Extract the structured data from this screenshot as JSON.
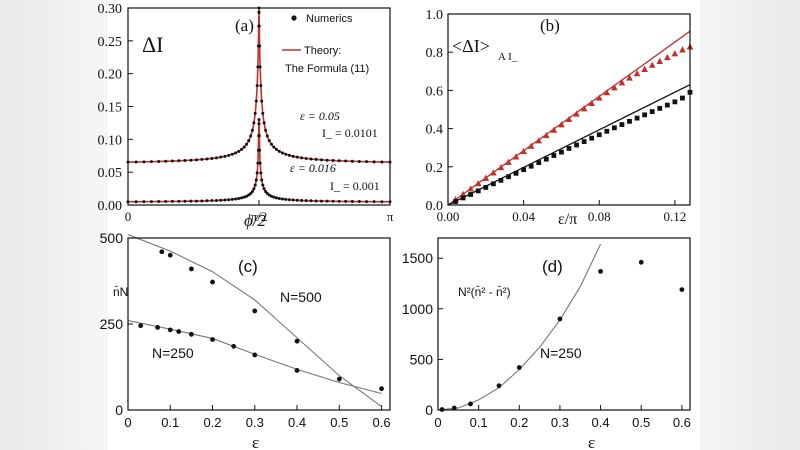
{
  "chart_data": [
    {
      "id": "a",
      "type": "line",
      "panel_label": "(a)",
      "ylabel": "ΔI",
      "xlabel": "ϕ/2",
      "xlim": [
        0,
        3.14159
      ],
      "ylim": [
        0,
        0.3
      ],
      "xticks": [
        {
          "v": 0,
          "label": "0"
        },
        {
          "v": 1.5708,
          "label": "π/2"
        },
        {
          "v": 3.14159,
          "label": "π"
        }
      ],
      "yticks": [
        0.0,
        0.05,
        0.1,
        0.15,
        0.2,
        0.25,
        0.3
      ],
      "ytick_labels": [
        "0.00",
        "0.05",
        "0.10",
        "0.15",
        "0.20",
        "0.25",
        "0.30"
      ],
      "legend": {
        "numerics": "Numerics",
        "theory_line1": "Theory:",
        "theory_line2": "The Formula (11)"
      },
      "annotations": [
        {
          "text": "ε = 0.05",
          "series": 0
        },
        {
          "text": "I_ = 0.0101",
          "series": 0
        },
        {
          "text": "ε = 0.016",
          "series": 1
        },
        {
          "text": "I_ = 0.001",
          "series": 1
        }
      ],
      "series": [
        {
          "name": "ε=0.05, I_=0.0101",
          "base": 0.062,
          "peak": 0.3
        },
        {
          "name": "ε=0.016, I_=0.001",
          "base": 0.004,
          "peak": 0.13
        }
      ]
    },
    {
      "id": "b",
      "type": "scatter",
      "panel_label": "(b)",
      "ylabel": "<ΔI>",
      "ylabel_sub": "A I_",
      "xlabel": "ε/π",
      "xlim": [
        0,
        0.128
      ],
      "ylim": [
        0,
        1.0
      ],
      "xticks": [
        0.0,
        0.04,
        0.08,
        0.12
      ],
      "xtick_labels": [
        "0.00",
        "0.04",
        "0.08",
        "0.12"
      ],
      "yticks": [
        0.0,
        0.2,
        0.4,
        0.6,
        0.8,
        1.0
      ],
      "ytick_labels": [
        "0.0",
        "0.2",
        "0.4",
        "0.6",
        "0.8",
        "1.0"
      ],
      "series": [
        {
          "name": "red triangles",
          "color": "#c0302c",
          "marker": "triangle",
          "x": [
            0.004,
            0.008,
            0.012,
            0.016,
            0.02,
            0.024,
            0.028,
            0.032,
            0.036,
            0.04,
            0.044,
            0.048,
            0.052,
            0.056,
            0.06,
            0.064,
            0.068,
            0.072,
            0.076,
            0.08,
            0.084,
            0.088,
            0.092,
            0.096,
            0.1,
            0.104,
            0.108,
            0.112,
            0.116,
            0.12,
            0.124,
            0.128
          ],
          "y": [
            0.028,
            0.056,
            0.084,
            0.112,
            0.14,
            0.168,
            0.196,
            0.224,
            0.252,
            0.28,
            0.308,
            0.336,
            0.364,
            0.392,
            0.42,
            0.448,
            0.476,
            0.504,
            0.532,
            0.56,
            0.588,
            0.614,
            0.64,
            0.665,
            0.688,
            0.71,
            0.732,
            0.752,
            0.772,
            0.792,
            0.812,
            0.828
          ],
          "fit": [
            [
              0.0,
              0.0
            ],
            [
              0.128,
              0.91
            ]
          ]
        },
        {
          "name": "black squares",
          "color": "#111111",
          "marker": "square",
          "x": [
            0.004,
            0.008,
            0.012,
            0.016,
            0.02,
            0.024,
            0.028,
            0.032,
            0.036,
            0.04,
            0.044,
            0.048,
            0.052,
            0.056,
            0.06,
            0.064,
            0.068,
            0.072,
            0.076,
            0.08,
            0.084,
            0.088,
            0.092,
            0.096,
            0.1,
            0.104,
            0.108,
            0.112,
            0.116,
            0.12,
            0.124,
            0.128
          ],
          "y": [
            0.018,
            0.037,
            0.055,
            0.074,
            0.092,
            0.111,
            0.129,
            0.148,
            0.166,
            0.185,
            0.203,
            0.222,
            0.24,
            0.259,
            0.277,
            0.296,
            0.314,
            0.332,
            0.35,
            0.368,
            0.386,
            0.404,
            0.421,
            0.438,
            0.455,
            0.472,
            0.489,
            0.506,
            0.523,
            0.54,
            0.56,
            0.59
          ],
          "fit": [
            [
              0.0,
              0.0
            ],
            [
              0.128,
              0.63
            ]
          ]
        }
      ]
    },
    {
      "id": "c",
      "type": "scatter",
      "panel_label": "(c)",
      "ylabel": "n̄N",
      "xlabel": "ε",
      "xlim": [
        0,
        0.62
      ],
      "ylim": [
        0,
        500
      ],
      "xticks": [
        0,
        0.1,
        0.2,
        0.3,
        0.4,
        0.5,
        0.6
      ],
      "xtick_labels": [
        "0",
        "0.1",
        "0.2",
        "0.3",
        "0.4",
        "0.5",
        "0.6"
      ],
      "yticks": [
        0,
        250,
        500
      ],
      "ytick_labels": [
        "0",
        "250",
        "500"
      ],
      "series": [
        {
          "name": "N=500",
          "x": [
            0.08,
            0.1,
            0.15,
            0.2,
            0.3,
            0.4
          ],
          "y": [
            460,
            450,
            410,
            372,
            288,
            200
          ],
          "curve": [
            [
              0,
              510
            ],
            [
              0.1,
              462
            ],
            [
              0.2,
              402
            ],
            [
              0.3,
              320
            ],
            [
              0.4,
              210
            ],
            [
              0.5,
              100
            ],
            [
              0.6,
              10
            ]
          ]
        },
        {
          "name": "N=250",
          "x": [
            0.03,
            0.07,
            0.1,
            0.12,
            0.15,
            0.2,
            0.25,
            0.3,
            0.4,
            0.5,
            0.6
          ],
          "y": [
            245,
            240,
            233,
            228,
            220,
            205,
            185,
            160,
            115,
            90,
            62
          ],
          "curve": [
            [
              0,
              260
            ],
            [
              0.1,
              235
            ],
            [
              0.2,
              208
            ],
            [
              0.3,
              162
            ],
            [
              0.4,
              118
            ],
            [
              0.5,
              80
            ],
            [
              0.6,
              48
            ]
          ]
        }
      ]
    },
    {
      "id": "d",
      "type": "scatter",
      "panel_label": "(d)",
      "ylabel": "N²(n̄² - n̄²)",
      "xlabel": "ε",
      "xlim": [
        0,
        0.62
      ],
      "ylim": [
        0,
        1700
      ],
      "xticks": [
        0,
        0.1,
        0.2,
        0.3,
        0.4,
        0.5,
        0.6
      ],
      "xtick_labels": [
        "0",
        "0.1",
        "0.2",
        "0.3",
        "0.4",
        "0.5",
        "0.6"
      ],
      "yticks": [
        0,
        500,
        1000,
        1500
      ],
      "ytick_labels": [
        "0",
        "500",
        "1000",
        "1500"
      ],
      "series": [
        {
          "name": "N=250",
          "x": [
            0.01,
            0.04,
            0.08,
            0.15,
            0.2,
            0.3,
            0.4,
            0.5,
            0.6
          ],
          "y": [
            5,
            20,
            60,
            240,
            420,
            900,
            1370,
            1460,
            1190
          ],
          "curve": [
            [
              0,
              0
            ],
            [
              0.05,
              20
            ],
            [
              0.1,
              100
            ],
            [
              0.15,
              220
            ],
            [
              0.2,
              400
            ],
            [
              0.25,
              620
            ],
            [
              0.3,
              890
            ],
            [
              0.35,
              1220
            ],
            [
              0.4,
              1640
            ]
          ]
        }
      ]
    }
  ]
}
